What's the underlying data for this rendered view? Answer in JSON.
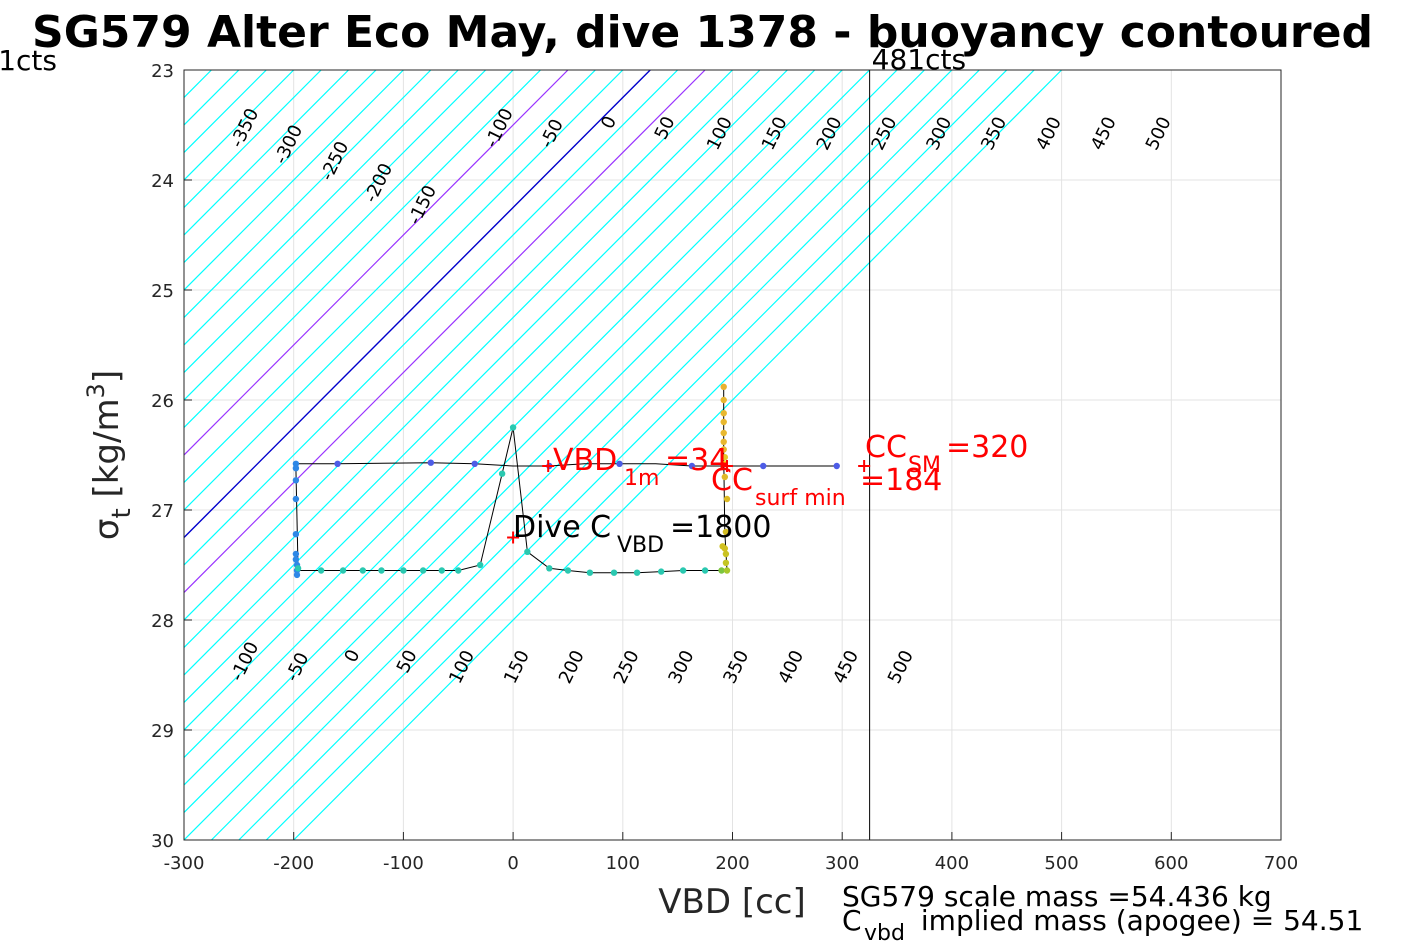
{
  "chart_data": {
    "type": "scatter",
    "title": "SG579 Alter Eco May, dive 1378 - buoyancy contoured",
    "xlabel": "VBD [cc]",
    "ylabel_main": "σ",
    "ylabel_sub": "t",
    "ylabel_rest": " [kg/m",
    "ylabel_sup": "3",
    "ylabel_close": "]",
    "xlim": [
      -300,
      700
    ],
    "ylim": [
      23,
      30
    ],
    "y_reversed": true,
    "grid": true,
    "xticks": [
      -300,
      -200,
      -100,
      0,
      100,
      200,
      300,
      400,
      500,
      600,
      700
    ],
    "xtick_labels": [
      "-300",
      "-200",
      "-100",
      "0",
      "100",
      "200",
      "300",
      "400",
      "500",
      "600",
      "700"
    ],
    "yticks": [
      23,
      24,
      25,
      26,
      27,
      28,
      29,
      30
    ],
    "ytick_labels": [
      "23",
      "24",
      "25",
      "26",
      "27",
      "28",
      "29",
      "30"
    ],
    "colors": {
      "contour": "#00ffff",
      "zero_contour": "#0000cc",
      "highlight_contour": "#9933ff",
      "text_red": "#ff0000",
      "marker_red": "#ff0000",
      "track": "#000000"
    },
    "contours": {
      "slope_per_100cc": 1.0,
      "top_intercepts": [
        -600,
        -550,
        -500,
        -450,
        -400,
        -350,
        -300,
        -250,
        -200,
        -150,
        -100,
        -50,
        0,
        50,
        100,
        150,
        200,
        250,
        300,
        350,
        400,
        450,
        500,
        550,
        600,
        650,
        700,
        750,
        800,
        850,
        900,
        950,
        1000,
        1050,
        1100,
        1150,
        1200,
        1250,
        1300,
        1350,
        1400
      ],
      "zero_top_intercept": 650,
      "highlight_top_intercepts": [
        500,
        750
      ],
      "upper_labels": [
        {
          "text": "-350",
          "x": -240,
          "y": 23.55
        },
        {
          "text": "-300",
          "x": -200,
          "y": 23.7
        },
        {
          "text": "-250",
          "x": -158,
          "y": 23.85
        },
        {
          "text": "-200",
          "x": -118,
          "y": 24.05
        },
        {
          "text": "-150",
          "x": -78,
          "y": 24.25
        },
        {
          "text": "-100",
          "x": -8,
          "y": 23.55
        },
        {
          "text": "-50",
          "x": 40,
          "y": 23.6
        },
        {
          "text": "0",
          "x": 92,
          "y": 23.5
        },
        {
          "text": "50",
          "x": 143,
          "y": 23.55
        },
        {
          "text": "100",
          "x": 193,
          "y": 23.6
        },
        {
          "text": "150",
          "x": 243,
          "y": 23.6
        },
        {
          "text": "200",
          "x": 293,
          "y": 23.6
        },
        {
          "text": "250",
          "x": 343,
          "y": 23.6
        },
        {
          "text": "300",
          "x": 393,
          "y": 23.6
        },
        {
          "text": "350",
          "x": 443,
          "y": 23.6
        },
        {
          "text": "400",
          "x": 493,
          "y": 23.6
        },
        {
          "text": "450",
          "x": 543,
          "y": 23.6
        },
        {
          "text": "500",
          "x": 593,
          "y": 23.6
        }
      ],
      "lower_labels": [
        {
          "text": "-100",
          "x": -240,
          "y": 28.4
        },
        {
          "text": "-50",
          "x": -192,
          "y": 28.45
        },
        {
          "text": "0",
          "x": -142,
          "y": 28.35
        },
        {
          "text": "50",
          "x": -92,
          "y": 28.4
        },
        {
          "text": "100",
          "x": -42,
          "y": 28.45
        },
        {
          "text": "150",
          "x": 8,
          "y": 28.45
        },
        {
          "text": "200",
          "x": 58,
          "y": 28.45
        },
        {
          "text": "250",
          "x": 108,
          "y": 28.45
        },
        {
          "text": "300",
          "x": 158,
          "y": 28.45
        },
        {
          "text": "350",
          "x": 208,
          "y": 28.45
        },
        {
          "text": "400",
          "x": 258,
          "y": 28.45
        },
        {
          "text": "450",
          "x": 308,
          "y": 28.45
        },
        {
          "text": "500",
          "x": 358,
          "y": 28.45
        }
      ]
    },
    "vertical_line": {
      "x": 325,
      "label": "481cts"
    },
    "left_label": "1cts",
    "track": [
      [
        295,
        26.6
      ],
      [
        228,
        26.6
      ],
      [
        195,
        26.6
      ],
      [
        163,
        26.6
      ],
      [
        130,
        26.58
      ],
      [
        97,
        26.58
      ],
      [
        65,
        26.58
      ],
      [
        33,
        26.6
      ],
      [
        0,
        26.6
      ],
      [
        -35,
        26.58
      ],
      [
        -75,
        26.57
      ],
      [
        -160,
        26.58
      ],
      [
        -198,
        26.58
      ],
      [
        -198,
        26.62
      ],
      [
        -196,
        27.55
      ],
      [
        -175,
        27.55
      ],
      [
        -155,
        27.55
      ],
      [
        -137,
        27.55
      ],
      [
        -120,
        27.55
      ],
      [
        -100,
        27.55
      ],
      [
        -82,
        27.55
      ],
      [
        -65,
        27.55
      ],
      [
        -50,
        27.55
      ],
      [
        -30,
        27.5
      ],
      [
        -10,
        26.67
      ],
      [
        0,
        26.25
      ],
      [
        13,
        27.38
      ],
      [
        33,
        27.53
      ],
      [
        50,
        27.55
      ],
      [
        70,
        27.57
      ],
      [
        92,
        27.57
      ],
      [
        113,
        27.57
      ],
      [
        135,
        27.56
      ],
      [
        155,
        27.55
      ],
      [
        175,
        27.55
      ],
      [
        192,
        27.55
      ],
      [
        195,
        27.55
      ],
      [
        193,
        27.2
      ],
      [
        192,
        26.5
      ],
      [
        192,
        25.88
      ]
    ],
    "points": [
      {
        "x": 295,
        "y": 26.6,
        "c": "#4d5ce6"
      },
      {
        "x": 228,
        "y": 26.6,
        "c": "#4d5ce6"
      },
      {
        "x": 163,
        "y": 26.6,
        "c": "#4d5ce6"
      },
      {
        "x": 97,
        "y": 26.58,
        "c": "#4d5ce6"
      },
      {
        "x": 33,
        "y": 26.6,
        "c": "#4d5ce6"
      },
      {
        "x": -35,
        "y": 26.58,
        "c": "#4d5ce6"
      },
      {
        "x": -75,
        "y": 26.57,
        "c": "#4d5ce6"
      },
      {
        "x": -160,
        "y": 26.58,
        "c": "#4d5ce6"
      },
      {
        "x": -198,
        "y": 26.58,
        "c": "#2e87e6"
      },
      {
        "x": -198,
        "y": 26.62,
        "c": "#2e87e6"
      },
      {
        "x": -198,
        "y": 26.73,
        "c": "#2e87e6"
      },
      {
        "x": -198,
        "y": 26.9,
        "c": "#2e87e6"
      },
      {
        "x": -198,
        "y": 27.22,
        "c": "#2e87e6"
      },
      {
        "x": -198,
        "y": 27.4,
        "c": "#2e87e6"
      },
      {
        "x": -198,
        "y": 27.45,
        "c": "#2e87e6"
      },
      {
        "x": -197,
        "y": 27.5,
        "c": "#2e87e6"
      },
      {
        "x": -197,
        "y": 27.55,
        "c": "#2e87e6"
      },
      {
        "x": -197,
        "y": 27.59,
        "c": "#2e87e6"
      },
      {
        "x": -196,
        "y": 27.53,
        "c": "#2ac8b0"
      },
      {
        "x": -175,
        "y": 27.55,
        "c": "#2ac8b0"
      },
      {
        "x": -155,
        "y": 27.55,
        "c": "#2ac8b0"
      },
      {
        "x": -137,
        "y": 27.55,
        "c": "#2ac8b0"
      },
      {
        "x": -120,
        "y": 27.55,
        "c": "#2ac8b0"
      },
      {
        "x": -100,
        "y": 27.55,
        "c": "#2ac8b0"
      },
      {
        "x": -82,
        "y": 27.55,
        "c": "#2ac8b0"
      },
      {
        "x": -65,
        "y": 27.55,
        "c": "#2ac8b0"
      },
      {
        "x": -50,
        "y": 27.55,
        "c": "#2ac8b0"
      },
      {
        "x": -30,
        "y": 27.5,
        "c": "#2ac8b0"
      },
      {
        "x": -10,
        "y": 26.67,
        "c": "#2ac8b0"
      },
      {
        "x": 0,
        "y": 26.25,
        "c": "#2ac8b0"
      },
      {
        "x": 13,
        "y": 27.38,
        "c": "#2ac8b0"
      },
      {
        "x": 33,
        "y": 27.53,
        "c": "#2ac8b0"
      },
      {
        "x": 50,
        "y": 27.55,
        "c": "#2ac8b0"
      },
      {
        "x": 70,
        "y": 27.57,
        "c": "#2ac8b0"
      },
      {
        "x": 92,
        "y": 27.57,
        "c": "#2ac8b0"
      },
      {
        "x": 113,
        "y": 27.57,
        "c": "#2ac8b0"
      },
      {
        "x": 135,
        "y": 27.56,
        "c": "#2ac8b0"
      },
      {
        "x": 155,
        "y": 27.55,
        "c": "#2ac8b0"
      },
      {
        "x": 175,
        "y": 27.55,
        "c": "#2ac8b0"
      },
      {
        "x": 190,
        "y": 27.55,
        "c": "#7cc640"
      },
      {
        "x": 195,
        "y": 27.55,
        "c": "#a8c82a"
      },
      {
        "x": 194,
        "y": 27.48,
        "c": "#c4c624"
      },
      {
        "x": 194,
        "y": 27.4,
        "c": "#c9c222"
      },
      {
        "x": 193,
        "y": 27.35,
        "c": "#d0c020"
      },
      {
        "x": 191,
        "y": 27.33,
        "c": "#d0c020"
      },
      {
        "x": 194,
        "y": 27.2,
        "c": "#d4bc22"
      },
      {
        "x": 195,
        "y": 26.9,
        "c": "#dcba24"
      },
      {
        "x": 193,
        "y": 26.7,
        "c": "#e0b828"
      },
      {
        "x": 193,
        "y": 26.58,
        "c": "#f2e81a"
      },
      {
        "x": 193,
        "y": 26.52,
        "c": "#e6c82a"
      },
      {
        "x": 192,
        "y": 26.45,
        "c": "#e8b830"
      },
      {
        "x": 192,
        "y": 26.38,
        "c": "#e8b830"
      },
      {
        "x": 192,
        "y": 26.3,
        "c": "#e8b830"
      },
      {
        "x": 192,
        "y": 26.2,
        "c": "#e8b830"
      },
      {
        "x": 192,
        "y": 26.12,
        "c": "#e8b830"
      },
      {
        "x": 192,
        "y": 26.0,
        "c": "#e8b830"
      },
      {
        "x": 192,
        "y": 25.88,
        "c": "#e8b030"
      }
    ],
    "markers": [
      {
        "x": 32,
        "y": 26.6
      },
      {
        "x": 195,
        "y": 26.6
      },
      {
        "x": 320,
        "y": 26.6
      },
      {
        "x": 0,
        "y": 27.25
      }
    ],
    "annotations": {
      "vbd1m": {
        "main": "VBD",
        "sub": "1m",
        "rest": "=34"
      },
      "cc_sm": {
        "main": "CC",
        "sub": "SM",
        "rest": "=320"
      },
      "cc_surf": {
        "main": "CC",
        "sub": "surf min",
        "rest": "=184"
      },
      "dive_c": {
        "main": "Dive C",
        "sub": "VBD",
        "rest": "=1800"
      }
    },
    "footer": {
      "line1": "SG579 scale mass =54.436 kg",
      "line2_main": "C",
      "line2_sub": "vbd",
      "line2_rest": " implied mass (apogee) = 54.51"
    }
  }
}
